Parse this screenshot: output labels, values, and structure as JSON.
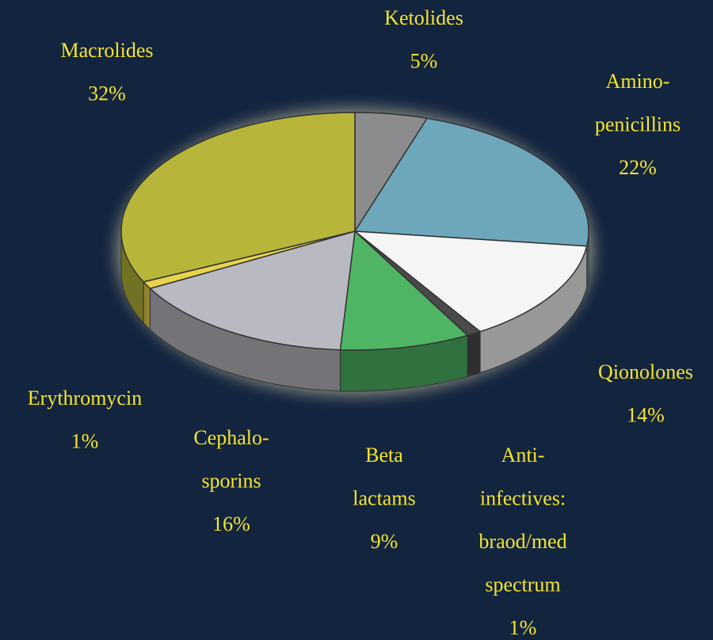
{
  "chart_data": {
    "type": "pie",
    "categories": [
      [
        "Ketolides"
      ],
      [
        "Amino-",
        "penicillins"
      ],
      [
        "Qionolones"
      ],
      [
        "Anti-",
        "infectives:",
        "braod/med",
        "spectrum"
      ],
      [
        "Beta",
        "lactams"
      ],
      [
        "Cephalo-",
        "sporins"
      ],
      [
        "Erythromycin"
      ],
      [
        "Macrolides"
      ]
    ],
    "values": [
      5,
      22,
      14,
      1,
      9,
      16,
      1,
      32
    ],
    "value_labels": [
      "5%",
      "22%",
      "14%",
      "1%",
      "9%",
      "16%",
      "1%",
      "32%"
    ],
    "colors": [
      "#8c8c8f",
      "#6ea7bb",
      "#f5f5f5",
      "#4a4a4a",
      "#4fb565",
      "#b9b9c2",
      "#e8d44c",
      "#b7b63a"
    ]
  }
}
